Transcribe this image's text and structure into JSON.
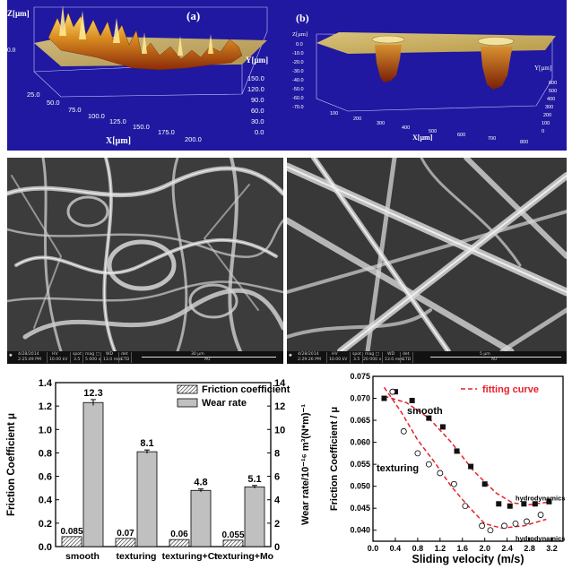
{
  "panel_a": {
    "label": "(a)",
    "z_axis_title": "Z[µm]",
    "z_tick": "0.0",
    "x_axis_title": "X[µm]",
    "x_ticks": [
      "25.0",
      "50.0",
      "75.0",
      "100.0",
      "125.0",
      "150.0",
      "175.0",
      "200.0"
    ],
    "y_axis_title": "Y[µm]",
    "y_ticks": [
      "150.0",
      "120.0",
      "90.0",
      "60.0",
      "30.0",
      "0.0"
    ]
  },
  "panel_b": {
    "label": "(b)",
    "z_axis_title": "Z[µm]",
    "z_ticks": [
      "0.0",
      "-10.0",
      "-20.0",
      "-30.0",
      "-40.0",
      "-50.0",
      "-60.0",
      "-70.0"
    ],
    "x_axis_title": "X[µm]",
    "x_ticks": [
      "100",
      "200",
      "300",
      "400",
      "500",
      "600",
      "700",
      "800"
    ],
    "y_axis_title": "Y[µm]",
    "y_ticks": [
      "600",
      "500",
      "400",
      "300",
      "200",
      "100",
      "0"
    ]
  },
  "sem_left": {
    "date": "4/28/2014",
    "time": "2:25:49 PM",
    "hv_label": "HV",
    "hv": "10.00 kV",
    "spot_label": "spot",
    "spot": "3.5",
    "mag_label": "mag □",
    "mag": "5 000 x",
    "wd_label": "WD",
    "wd": "13.0 mm",
    "det_label": "det",
    "det": "ETD",
    "scale": "30 µm",
    "org": "AU"
  },
  "sem_right": {
    "date": "4/28/2014",
    "time": "2:29:26 PM",
    "hv_label": "HV",
    "hv": "10.00 kV",
    "spot_label": "spot",
    "spot": "3.5",
    "mag_label": "mag □",
    "mag": "20 000 x",
    "wd_label": "WD",
    "wd": "13.0 mm",
    "det_label": "det",
    "det": "ETD",
    "scale": "5 µm",
    "org": "AU"
  },
  "chart_data": [
    {
      "type": "bar",
      "categories": [
        "smooth",
        "texturing",
        "texturing+Cr",
        "texturing+Mo"
      ],
      "series": [
        {
          "name": "Friction coefficient",
          "axis": "left",
          "values": [
            0.085,
            0.07,
            0.06,
            0.055
          ],
          "labels": [
            "0.085",
            "0.07",
            "0.06",
            "0.055"
          ],
          "pattern": "hatch"
        },
        {
          "name": "Wear rate",
          "axis": "right",
          "values": [
            12.3,
            8.1,
            4.8,
            5.1
          ],
          "labels": [
            "12.3",
            "8.1",
            "4.8",
            "5.1"
          ],
          "errors": [
            0.25,
            0.15,
            0.12,
            0.12
          ],
          "color": "#c0c0c0"
        }
      ],
      "ylabel_left": "Friction Coefficient μ",
      "ylabel_right": "Wear rate/10⁻¹⁶ m³(N*m)⁻¹",
      "ylim_left": [
        0.0,
        1.4
      ],
      "yticks_left": [
        "0.0",
        "0.2",
        "0.4",
        "0.6",
        "0.8",
        "1.0",
        "1.2",
        "1.4"
      ],
      "ylim_right": [
        0,
        14
      ],
      "yticks_right": [
        "0",
        "2",
        "4",
        "6",
        "8",
        "10",
        "12",
        "14"
      ],
      "legend": "top-right"
    },
    {
      "type": "scatter",
      "xlabel": "Sliding velocity (m/s)",
      "ylabel": "Friction Coefficient / μ",
      "xlim": [
        0.0,
        3.4
      ],
      "xticks": [
        "0.0",
        "0.4",
        "0.8",
        "1.2",
        "1.6",
        "2.0",
        "2.4",
        "2.8",
        "3.2"
      ],
      "ylim": [
        0.0375,
        0.075
      ],
      "yticks": [
        "0.040",
        "0.045",
        "0.050",
        "0.055",
        "0.060",
        "0.065",
        "0.070",
        "0.075"
      ],
      "legend_fit": "fitting curve",
      "fit_color": "#e8202a",
      "series": [
        {
          "name": "smooth",
          "marker": "filled-square",
          "x": [
            0.2,
            0.4,
            0.7,
            1.0,
            1.25,
            1.5,
            1.75,
            2.0,
            2.25,
            2.45,
            2.7,
            2.9,
            3.15
          ],
          "y": [
            0.07,
            0.0715,
            0.0695,
            0.0655,
            0.0635,
            0.058,
            0.0545,
            0.0505,
            0.046,
            0.0455,
            0.046,
            0.046,
            0.0465
          ]
        },
        {
          "name": "texturing",
          "marker": "open-circle",
          "x": [
            0.35,
            0.55,
            0.8,
            1.0,
            1.2,
            1.45,
            1.65,
            1.95,
            2.1,
            2.35,
            2.55,
            2.75,
            3.0
          ],
          "y": [
            0.0715,
            0.0625,
            0.0575,
            0.055,
            0.053,
            0.0505,
            0.0455,
            0.041,
            0.04,
            0.041,
            0.0415,
            0.042,
            0.0435
          ]
        }
      ],
      "fit_smooth": {
        "x": [
          0.2,
          0.6,
          1.0,
          1.4,
          1.8,
          2.2,
          2.5,
          2.8,
          3.2
        ],
        "y": [
          0.0705,
          0.069,
          0.0655,
          0.06,
          0.0535,
          0.0485,
          0.0462,
          0.0458,
          0.0465
        ]
      },
      "fit_texturing": {
        "x": [
          0.2,
          0.5,
          0.8,
          1.1,
          1.4,
          1.7,
          2.0,
          2.3,
          2.7,
          3.1
        ],
        "y": [
          0.0725,
          0.067,
          0.0605,
          0.0555,
          0.05,
          0.0455,
          0.0415,
          0.0405,
          0.041,
          0.0425
        ]
      },
      "annotations": [
        {
          "text": "hydrodynamics",
          "x": 2.55,
          "y": 0.0462
        },
        {
          "text": "hydrodynamics",
          "x": 2.55,
          "y": 0.04
        }
      ]
    }
  ]
}
